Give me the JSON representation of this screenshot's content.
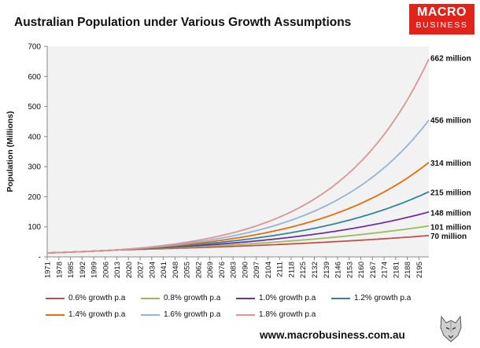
{
  "header": {
    "title": "Australian Population under Various Growth Assumptions"
  },
  "logo": {
    "line1": "MACRO",
    "line2": "BUSINESS",
    "color": "#e2231a"
  },
  "footer": {
    "website": "www.macrobusiness.com.au"
  },
  "chart_data": {
    "type": "line",
    "title": "Australian Population under Various Growth Assumptions",
    "xlabel": "",
    "ylabel": "Population (Millions)",
    "ylim": [
      0,
      700
    ],
    "yticks": [
      0,
      100,
      200,
      300,
      400,
      500,
      600,
      700
    ],
    "ytick_labels": [
      "-",
      "100",
      "200",
      "300",
      "400",
      "500",
      "600",
      "700"
    ],
    "xlim": [
      1971,
      2201
    ],
    "xticks": [
      1971,
      1978,
      1985,
      1992,
      1999,
      2006,
      2013,
      2020,
      2027,
      2034,
      2041,
      2048,
      2055,
      2062,
      2069,
      2076,
      2083,
      2090,
      2097,
      2104,
      2111,
      2118,
      2125,
      2132,
      2139,
      2146,
      2153,
      2160,
      2167,
      2174,
      2181,
      2188,
      2195
    ],
    "legend_position": "bottom",
    "history": {
      "x": [
        1971,
        1980,
        1990,
        2000,
        2010,
        2013
      ],
      "values": [
        13,
        14.7,
        17,
        19.2,
        22,
        23
      ]
    },
    "series": [
      {
        "name": "0.6% growth p.a",
        "rate": 0.006,
        "color": "#c0504d",
        "end_value": 70,
        "end_label": "70 million"
      },
      {
        "name": "0.8% growth p.a",
        "rate": 0.008,
        "color": "#9bbb59",
        "end_value": 101,
        "end_label": "101 million"
      },
      {
        "name": "1.0% growth p.a",
        "rate": 0.01,
        "color": "#7030a0",
        "end_value": 148,
        "end_label": "148 million"
      },
      {
        "name": "1.2% growth p.a",
        "rate": 0.012,
        "color": "#31859c",
        "end_value": 215,
        "end_label": "215 million"
      },
      {
        "name": "1.4% growth p.a",
        "rate": 0.014,
        "color": "#e46c0a",
        "end_value": 314,
        "end_label": "314 million"
      },
      {
        "name": "1.6% growth p.a",
        "rate": 0.016,
        "color": "#95b3d7",
        "end_value": 456,
        "end_label": "456 million"
      },
      {
        "name": "1.8% growth p.a",
        "rate": 0.018,
        "color": "#d99694",
        "end_value": 662,
        "end_label": "662 million"
      }
    ]
  }
}
